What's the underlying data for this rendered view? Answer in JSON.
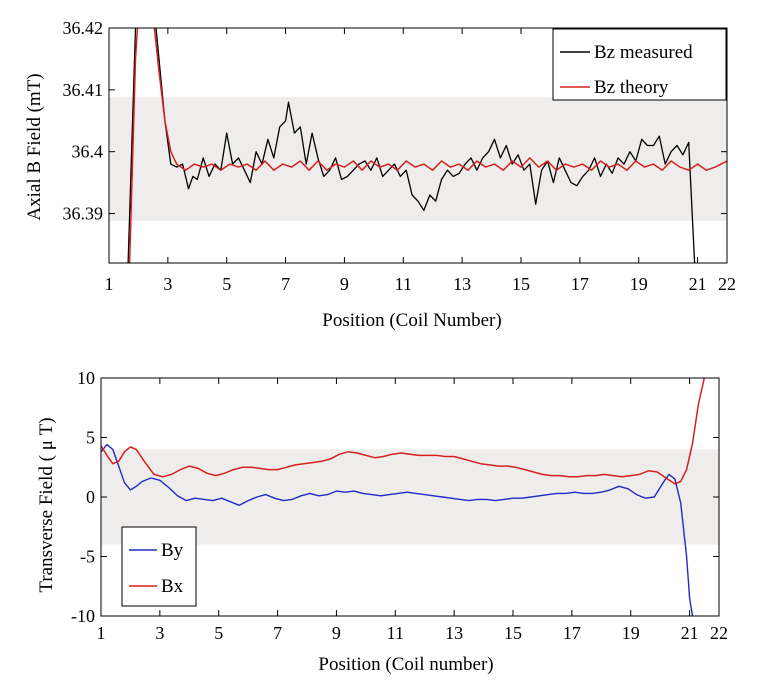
{
  "chart_data": [
    {
      "type": "line",
      "xlabel": "Position (Coil Number)",
      "ylabel": "Axial B Field (mT)",
      "xlim": [
        1,
        22
      ],
      "ylim": [
        36.382,
        36.42
      ],
      "xticks": [
        1,
        3,
        5,
        7,
        9,
        11,
        13,
        15,
        17,
        19,
        21,
        22
      ],
      "xtick_labels": [
        "1",
        "3",
        "5",
        "7",
        "9",
        "11",
        "13",
        "15",
        "17",
        "19",
        "21",
        "22"
      ],
      "yticks": [
        36.39,
        36.4,
        36.41,
        36.42
      ],
      "ytick_labels": [
        "36.39",
        "36.4",
        "36.41",
        "36.42"
      ],
      "shaded_band": [
        36.3888,
        36.4088
      ],
      "legend_position": "top-right",
      "series": [
        {
          "name": "Bz measured",
          "color": "#000000",
          "x": [
            1.65,
            1.9,
            2.1,
            2.3,
            2.5,
            2.7,
            2.9,
            3.1,
            3.3,
            3.5,
            3.7,
            3.85,
            4.0,
            4.2,
            4.4,
            4.6,
            4.8,
            5.0,
            5.2,
            5.4,
            5.6,
            5.8,
            6.0,
            6.2,
            6.4,
            6.6,
            6.8,
            7.0,
            7.1,
            7.3,
            7.5,
            7.7,
            7.9,
            8.1,
            8.3,
            8.5,
            8.7,
            8.9,
            9.1,
            9.3,
            9.5,
            9.7,
            9.9,
            10.1,
            10.3,
            10.5,
            10.7,
            10.9,
            11.1,
            11.3,
            11.5,
            11.7,
            11.9,
            12.1,
            12.3,
            12.5,
            12.7,
            12.9,
            13.1,
            13.3,
            13.5,
            13.7,
            13.9,
            14.1,
            14.3,
            14.5,
            14.7,
            14.9,
            15.1,
            15.3,
            15.5,
            15.7,
            15.9,
            16.1,
            16.3,
            16.5,
            16.7,
            16.9,
            17.1,
            17.3,
            17.5,
            17.7,
            17.9,
            18.1,
            18.3,
            18.5,
            18.7,
            18.9,
            19.1,
            19.3,
            19.5,
            19.7,
            19.9,
            20.1,
            20.3,
            20.5,
            20.7,
            20.9,
            21.1
          ],
          "y": [
            36.382,
            36.42,
            36.43,
            36.428,
            36.425,
            36.415,
            36.405,
            36.398,
            36.3975,
            36.398,
            36.394,
            36.396,
            36.3955,
            36.399,
            36.396,
            36.398,
            36.397,
            36.403,
            36.398,
            36.399,
            36.397,
            36.395,
            36.4,
            36.398,
            36.402,
            36.399,
            36.404,
            36.405,
            36.408,
            36.403,
            36.404,
            36.398,
            36.403,
            36.399,
            36.396,
            36.397,
            36.399,
            36.3955,
            36.396,
            36.397,
            36.398,
            36.3985,
            36.397,
            36.399,
            36.396,
            36.397,
            36.398,
            36.396,
            36.397,
            36.393,
            36.392,
            36.3905,
            36.393,
            36.392,
            36.3955,
            36.397,
            36.396,
            36.3965,
            36.398,
            36.399,
            36.397,
            36.399,
            36.4,
            36.402,
            36.399,
            36.401,
            36.398,
            36.3995,
            36.397,
            36.398,
            36.3915,
            36.397,
            36.3985,
            36.395,
            36.399,
            36.397,
            36.395,
            36.3945,
            36.396,
            36.397,
            36.399,
            36.396,
            36.398,
            36.3965,
            36.399,
            36.398,
            36.4,
            36.3985,
            36.402,
            36.401,
            36.401,
            36.4025,
            36.398,
            36.4,
            36.401,
            36.3995,
            36.4015,
            36.382,
            36.375
          ],
          "line_width": 1.3
        },
        {
          "name": "Bz theory",
          "color": "#d62020",
          "x": [
            1.7,
            1.9,
            2.1,
            2.3,
            2.5,
            2.7,
            2.9,
            3.1,
            3.3,
            3.6,
            3.9,
            4.2,
            4.5,
            4.8,
            5.1,
            5.4,
            5.7,
            6.0,
            6.3,
            6.6,
            6.9,
            7.2,
            7.5,
            7.8,
            8.1,
            8.4,
            8.7,
            9.0,
            9.3,
            9.6,
            9.9,
            10.2,
            10.5,
            10.8,
            11.1,
            11.4,
            11.7,
            12.0,
            12.3,
            12.6,
            12.9,
            13.2,
            13.5,
            13.8,
            14.1,
            14.4,
            14.7,
            15.0,
            15.3,
            15.6,
            15.9,
            16.2,
            16.5,
            16.8,
            17.1,
            17.4,
            17.7,
            18.0,
            18.3,
            18.6,
            18.9,
            19.2,
            19.5,
            19.8,
            20.1,
            20.4,
            20.7,
            21.0,
            21.3,
            21.6,
            22.0
          ],
          "y": [
            36.382,
            36.415,
            36.43,
            36.427,
            36.422,
            36.413,
            36.405,
            36.4,
            36.398,
            36.397,
            36.398,
            36.3975,
            36.398,
            36.397,
            36.398,
            36.3975,
            36.398,
            36.397,
            36.3985,
            36.397,
            36.398,
            36.3975,
            36.3985,
            36.397,
            36.3985,
            36.397,
            36.398,
            36.3975,
            36.3985,
            36.397,
            36.3985,
            36.3975,
            36.398,
            36.397,
            36.3985,
            36.3975,
            36.398,
            36.397,
            36.3985,
            36.3975,
            36.398,
            36.397,
            36.3985,
            36.3975,
            36.398,
            36.397,
            36.3985,
            36.3975,
            36.399,
            36.3975,
            36.3985,
            36.397,
            36.398,
            36.3975,
            36.398,
            36.397,
            36.3985,
            36.3975,
            36.398,
            36.397,
            36.3985,
            36.3975,
            36.398,
            36.397,
            36.3985,
            36.3975,
            36.397,
            36.398,
            36.397,
            36.3975,
            36.3985
          ],
          "line_width": 1.5
        }
      ]
    },
    {
      "type": "line",
      "xlabel": "Position (Coil number)",
      "ylabel": "Transverse Field ( μ T)",
      "xlim": [
        1,
        22
      ],
      "ylim": [
        -10,
        10
      ],
      "xticks": [
        1,
        3,
        5,
        7,
        9,
        11,
        13,
        15,
        17,
        19,
        21,
        22
      ],
      "xtick_labels": [
        "1",
        "3",
        "5",
        "7",
        "9",
        "11",
        "13",
        "15",
        "17",
        "19",
        "21",
        "22"
      ],
      "yticks": [
        -10,
        -5,
        0,
        5,
        10
      ],
      "ytick_labels": [
        "-10",
        "-5",
        "0",
        "5",
        "10"
      ],
      "shaded_band": [
        -4,
        4
      ],
      "legend_position": "bottom-left",
      "series": [
        {
          "name": "By",
          "color": "#1f2bc4",
          "x": [
            1.0,
            1.2,
            1.4,
            1.6,
            1.8,
            2.0,
            2.2,
            2.4,
            2.7,
            3.0,
            3.3,
            3.6,
            3.9,
            4.2,
            4.5,
            4.8,
            5.1,
            5.4,
            5.7,
            6.0,
            6.3,
            6.6,
            6.9,
            7.2,
            7.5,
            7.8,
            8.1,
            8.4,
            8.7,
            9.0,
            9.3,
            9.6,
            9.9,
            10.2,
            10.5,
            10.8,
            11.1,
            11.4,
            11.7,
            12.0,
            12.3,
            12.6,
            12.9,
            13.2,
            13.5,
            13.8,
            14.1,
            14.4,
            14.7,
            15.0,
            15.3,
            15.6,
            15.9,
            16.2,
            16.5,
            16.8,
            17.1,
            17.4,
            17.7,
            18.0,
            18.3,
            18.6,
            18.9,
            19.2,
            19.5,
            19.8,
            20.1,
            20.3,
            20.5,
            20.7,
            20.9,
            21.0,
            21.1
          ],
          "y": [
            3.8,
            4.4,
            4.0,
            2.6,
            1.2,
            0.6,
            0.9,
            1.3,
            1.6,
            1.4,
            0.8,
            0.1,
            -0.3,
            -0.1,
            -0.2,
            -0.3,
            -0.1,
            -0.4,
            -0.7,
            -0.3,
            0.0,
            0.2,
            -0.1,
            -0.3,
            -0.2,
            0.1,
            0.3,
            0.1,
            0.2,
            0.5,
            0.4,
            0.5,
            0.3,
            0.2,
            0.1,
            0.2,
            0.3,
            0.4,
            0.3,
            0.2,
            0.1,
            0.0,
            -0.1,
            -0.2,
            -0.3,
            -0.2,
            -0.2,
            -0.3,
            -0.2,
            -0.1,
            -0.1,
            0.0,
            0.1,
            0.2,
            0.3,
            0.3,
            0.4,
            0.3,
            0.3,
            0.4,
            0.6,
            0.9,
            0.7,
            0.2,
            -0.1,
            0.0,
            1.2,
            1.9,
            1.5,
            -0.5,
            -5.0,
            -8.5,
            -10.0
          ],
          "line_width": 1.4
        },
        {
          "name": "Bx",
          "color": "#d62020",
          "x": [
            1.0,
            1.2,
            1.4,
            1.6,
            1.8,
            2.0,
            2.2,
            2.5,
            2.8,
            3.1,
            3.4,
            3.7,
            4.0,
            4.3,
            4.6,
            4.9,
            5.2,
            5.5,
            5.8,
            6.1,
            6.4,
            6.7,
            7.0,
            7.3,
            7.6,
            7.9,
            8.2,
            8.5,
            8.8,
            9.1,
            9.4,
            9.7,
            10.0,
            10.3,
            10.6,
            10.9,
            11.2,
            11.5,
            11.8,
            12.1,
            12.4,
            12.7,
            13.0,
            13.3,
            13.6,
            13.9,
            14.2,
            14.5,
            14.8,
            15.1,
            15.4,
            15.7,
            16.0,
            16.3,
            16.6,
            16.9,
            17.2,
            17.5,
            17.8,
            18.1,
            18.4,
            18.7,
            19.0,
            19.3,
            19.6,
            19.9,
            20.2,
            20.5,
            20.7,
            20.9,
            21.1,
            21.3,
            21.5
          ],
          "y": [
            4.3,
            3.5,
            2.8,
            3.0,
            3.8,
            4.2,
            4.0,
            2.9,
            1.9,
            1.7,
            1.9,
            2.3,
            2.6,
            2.4,
            2.0,
            1.8,
            2.0,
            2.3,
            2.5,
            2.5,
            2.4,
            2.3,
            2.3,
            2.5,
            2.7,
            2.8,
            2.9,
            3.0,
            3.2,
            3.6,
            3.8,
            3.7,
            3.5,
            3.3,
            3.4,
            3.6,
            3.7,
            3.6,
            3.5,
            3.5,
            3.5,
            3.4,
            3.4,
            3.2,
            3.0,
            2.8,
            2.7,
            2.6,
            2.6,
            2.5,
            2.3,
            2.1,
            1.9,
            1.8,
            1.8,
            1.7,
            1.7,
            1.8,
            1.8,
            1.9,
            1.8,
            1.7,
            1.8,
            1.9,
            2.2,
            2.1,
            1.6,
            1.1,
            1.3,
            2.3,
            4.5,
            7.8,
            10.0
          ],
          "line_width": 1.5
        }
      ]
    }
  ]
}
